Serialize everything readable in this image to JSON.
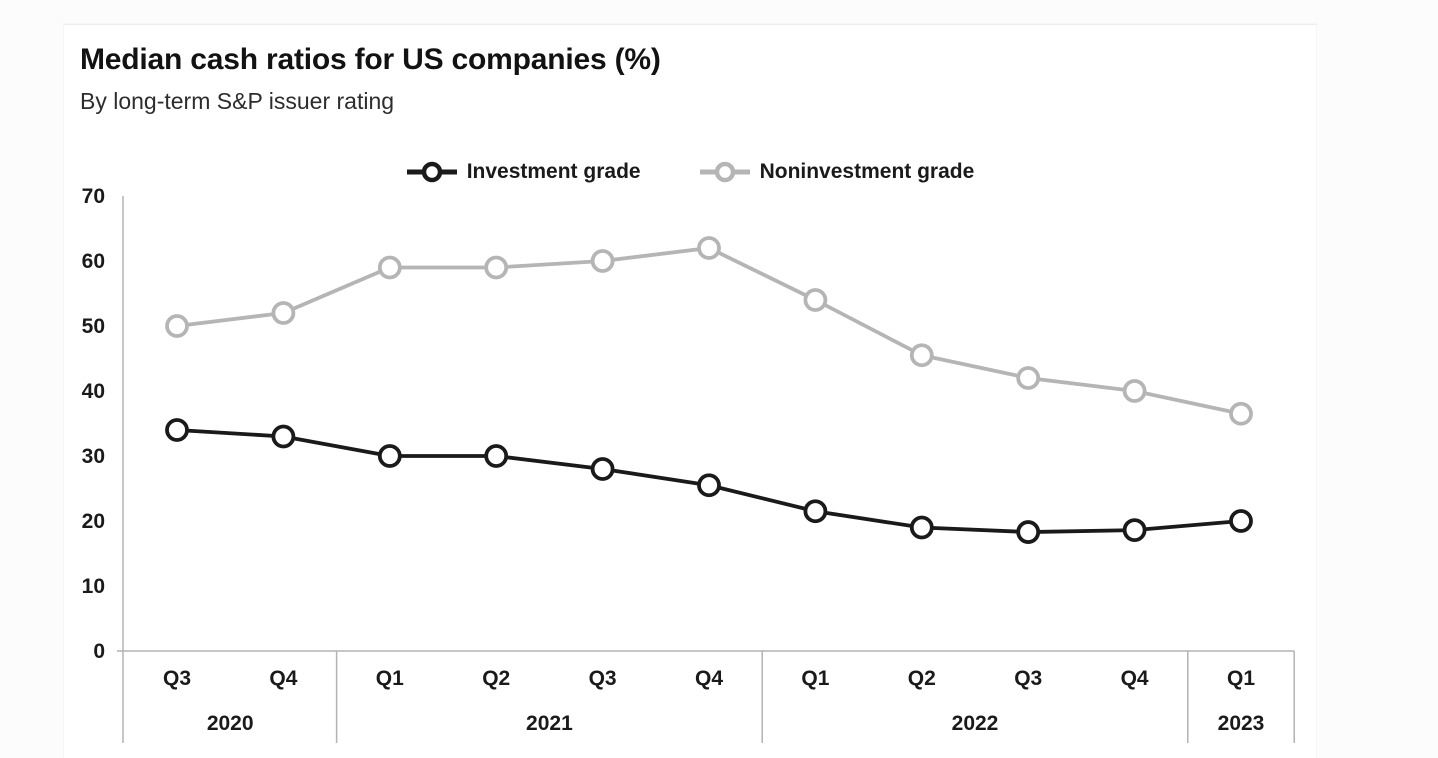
{
  "page": {
    "background_color": "#fcfcfc",
    "card_background_color": "#ffffff"
  },
  "chart_data": {
    "type": "line",
    "title": "Median cash ratios for US companies (%)",
    "subtitle": "By long-term S&P issuer rating",
    "categories": [
      "Q3",
      "Q4",
      "Q1",
      "Q2",
      "Q3",
      "Q4",
      "Q1",
      "Q2",
      "Q3",
      "Q4",
      "Q1"
    ],
    "year_groups": [
      {
        "label": "2020",
        "from": 0,
        "to": 1
      },
      {
        "label": "2021",
        "from": 2,
        "to": 5
      },
      {
        "label": "2022",
        "from": 6,
        "to": 9
      },
      {
        "label": "2023",
        "from": 10,
        "to": 10
      }
    ],
    "series": [
      {
        "name": "Investment grade",
        "color": "#1a1a1a",
        "values": [
          34,
          33,
          30,
          30,
          28,
          25.5,
          21.5,
          19,
          18.3,
          18.6,
          20
        ]
      },
      {
        "name": "Noninvestment grade",
        "color": "#b5b5b5",
        "values": [
          50,
          52,
          59,
          59,
          60,
          62,
          54,
          45.5,
          42,
          40,
          36.5
        ]
      }
    ],
    "ylim": [
      0,
      70
    ],
    "yticks": [
      0,
      10,
      20,
      30,
      40,
      50,
      60,
      70
    ],
    "xlabel": "",
    "ylabel": "",
    "grid": false,
    "legend_position": "top-center",
    "marker": "open-circle",
    "marker_fill": "#ffffff",
    "axis_color": "#b3b3b3"
  }
}
